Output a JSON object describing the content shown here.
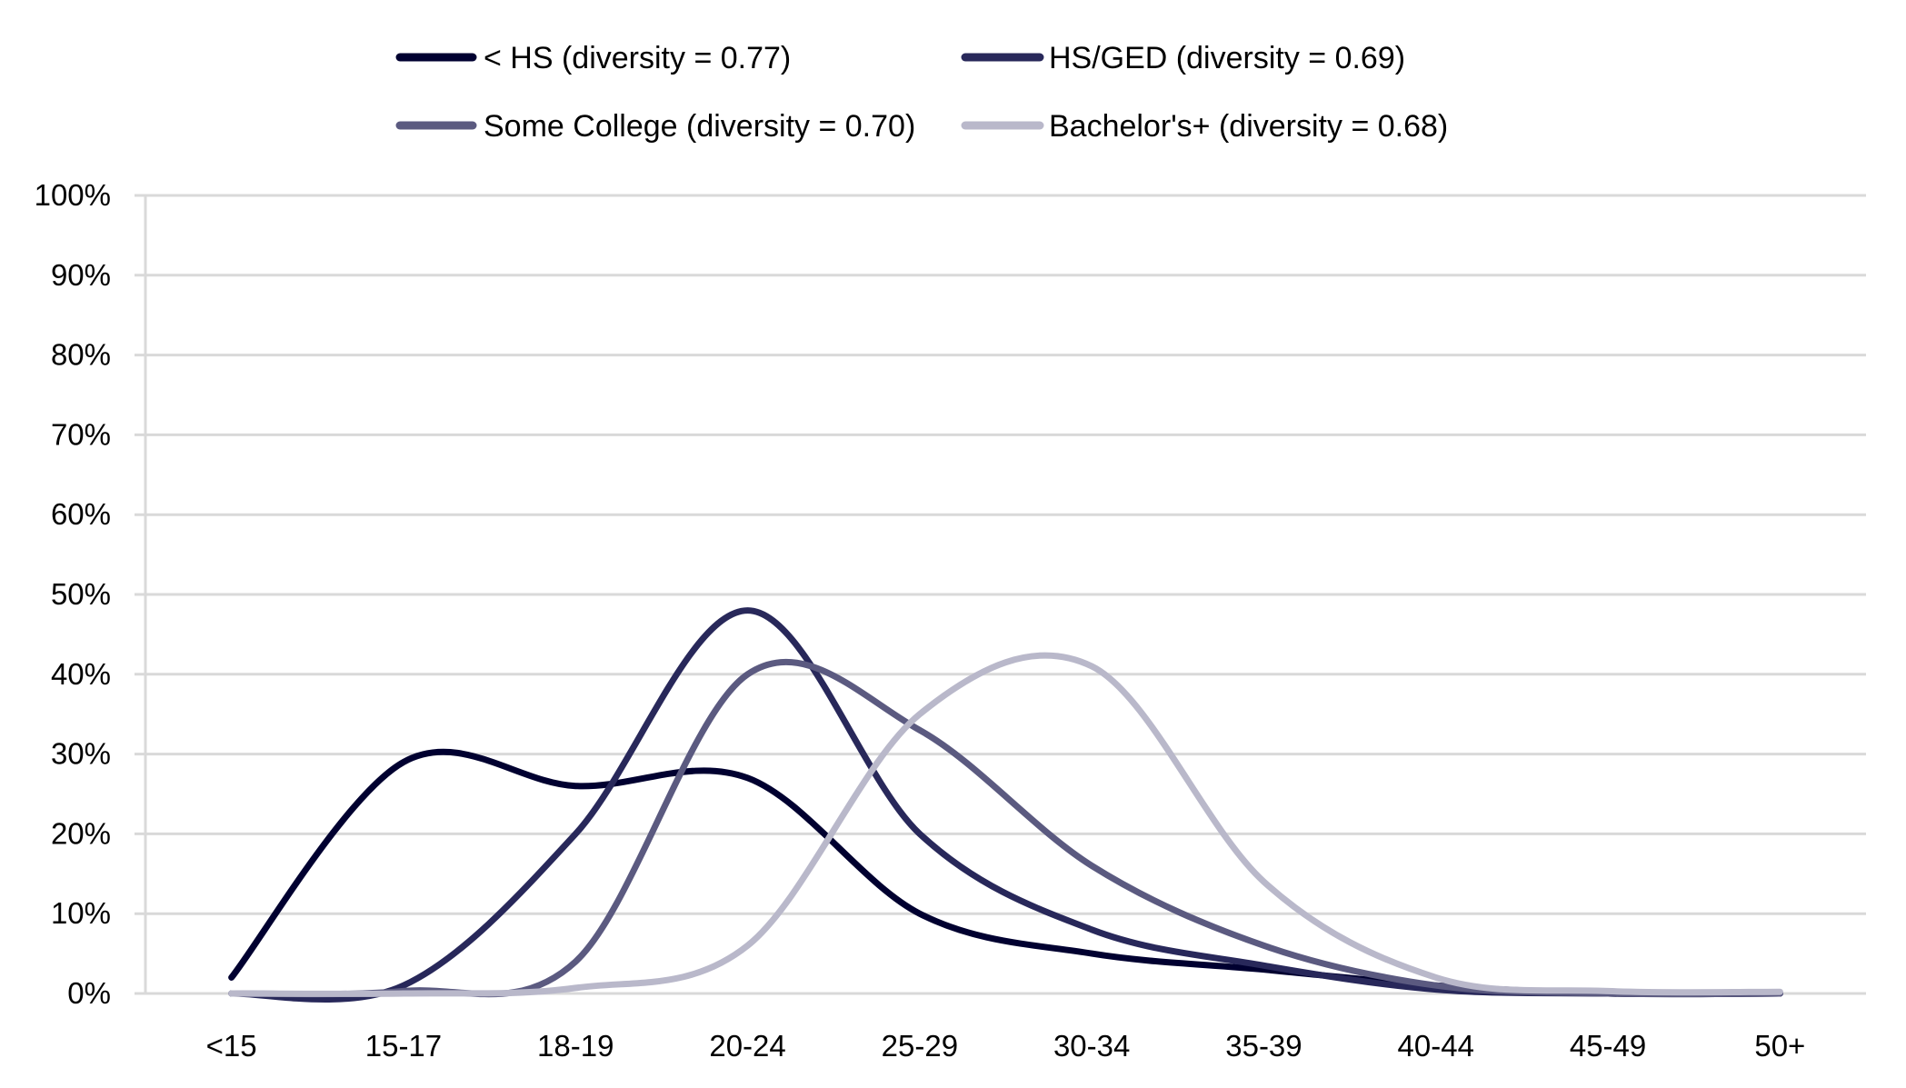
{
  "chart_data": {
    "type": "line",
    "title": "",
    "xlabel": "",
    "ylabel": "",
    "smoothed": true,
    "grid": true,
    "legend_position": "top",
    "ylim": [
      0,
      100
    ],
    "y_unit": "%",
    "yticks": [
      0,
      10,
      20,
      30,
      40,
      50,
      60,
      70,
      80,
      90,
      100
    ],
    "ytick_labels": [
      "0%",
      "10%",
      "20%",
      "30%",
      "40%",
      "50%",
      "60%",
      "70%",
      "80%",
      "90%",
      "100%"
    ],
    "categories": [
      "<15",
      "15-17",
      "18-19",
      "20-24",
      "25-29",
      "30-34",
      "35-39",
      "40-44",
      "45-49",
      "50+"
    ],
    "series": [
      {
        "name": "< HS (diversity = 0.77)",
        "color": "#000030",
        "values": [
          2,
          29,
          26,
          27,
          10,
          5,
          3,
          1,
          0,
          0
        ]
      },
      {
        "name": "HS/GED (diversity = 0.69)",
        "color": "#28285a",
        "values": [
          0,
          1,
          20,
          48,
          20,
          8,
          3.5,
          0.5,
          0,
          0
        ]
      },
      {
        "name": "Some College (diversity = 0.70)",
        "color": "#5b5a80",
        "values": [
          0,
          0.3,
          4,
          40,
          33,
          16,
          6,
          1,
          0,
          0
        ]
      },
      {
        "name": "Bachelor's+ (diversity = 0.68)",
        "color": "#b9b8ca",
        "values": [
          0,
          0,
          0.7,
          6,
          35,
          41,
          14,
          2,
          0.3,
          0.2
        ]
      }
    ]
  }
}
